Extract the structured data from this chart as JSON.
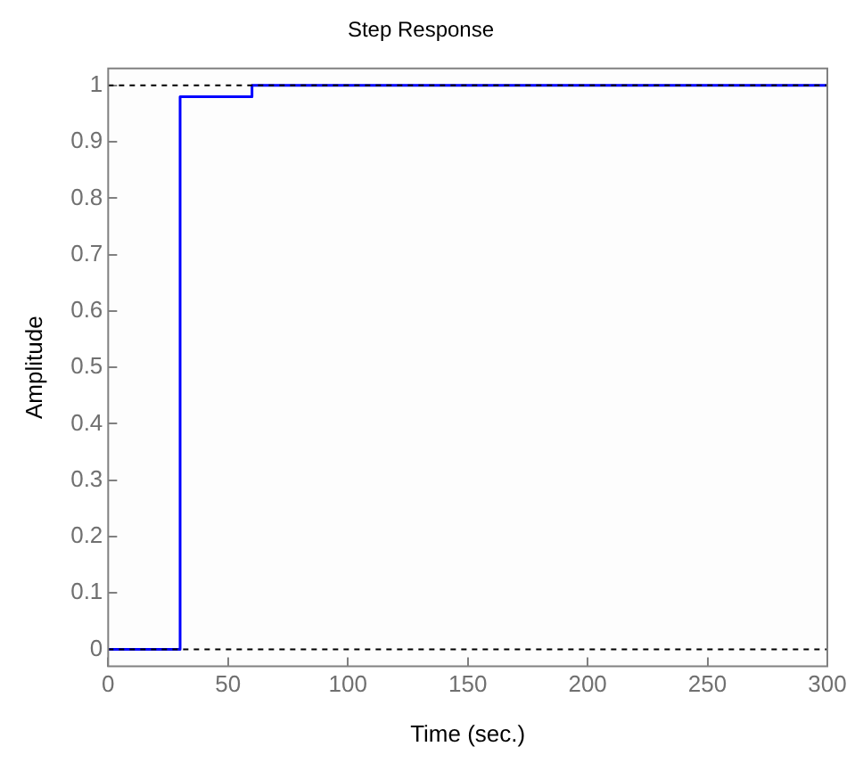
{
  "chart_data": {
    "type": "step",
    "title": "Step Response",
    "xlabel": "Time (sec.)",
    "ylabel": "Amplitude",
    "x": [
      0,
      30,
      60,
      300
    ],
    "series": [
      {
        "color": "#0000ff",
        "values": [
          0,
          0.98,
          1,
          1
        ]
      }
    ],
    "xlim": [
      0,
      300
    ],
    "xticks": [
      0,
      50,
      100,
      150,
      200,
      250,
      300
    ],
    "ylim": [
      -0.03,
      1.03
    ],
    "yticks": [
      0,
      0.1,
      0.2,
      0.3,
      0.4,
      0.5,
      0.6,
      0.7,
      0.8,
      0.9,
      1
    ],
    "ref_lines": [
      {
        "axis": "y",
        "value": 1,
        "color": "#000000",
        "line_style": "dashed"
      },
      {
        "axis": "y",
        "value": 0,
        "color": "#000000",
        "line_style": "dashed"
      }
    ],
    "grid": false,
    "legend": false
  }
}
